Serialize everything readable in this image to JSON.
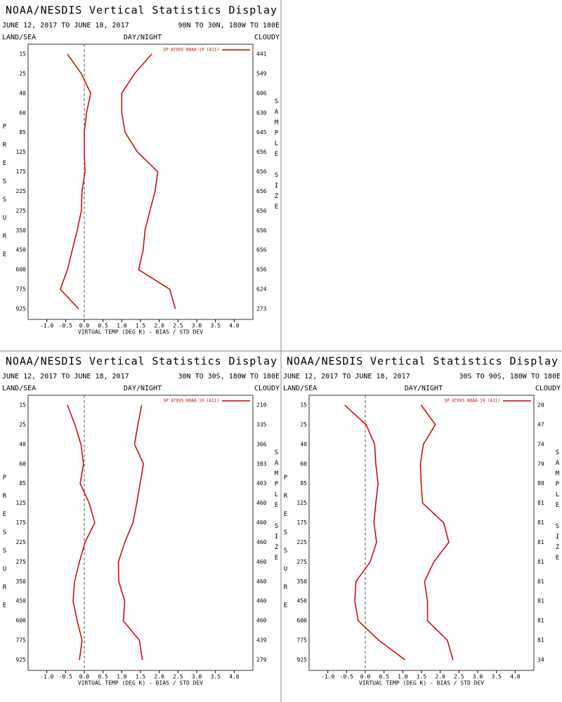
{
  "chart_data": [
    {
      "type": "line",
      "title": "NOAA/NESDIS Vertical Statistics Display",
      "date_range": "JUNE 12, 2017 TO JUNE 18, 2017",
      "region": "90N TO 30N, 180W TO 180E",
      "surface": "LAND/SEA",
      "time": "DAY/NIGHT",
      "sky": "CLOUDY",
      "xlabel": "VIRTUAL TEMP (DEG K) - BIAS / STD DEV",
      "ylabel": "PRESSURE",
      "y2label": "SAMPLE SIZE",
      "categories": [
        15,
        25,
        40,
        60,
        85,
        125,
        175,
        225,
        275,
        350,
        450,
        600,
        775,
        925
      ],
      "sample_size": [
        441,
        549,
        606,
        630,
        645,
        656,
        656,
        656,
        656,
        656,
        656,
        656,
        624,
        273
      ],
      "series": [
        {
          "name": "SP ATOVS NOAA-19 (A11)",
          "color": "#cc0000",
          "bias": [
            -0.45,
            -0.08,
            0.17,
            0.06,
            0.0,
            0.0,
            0.02,
            -0.06,
            -0.08,
            -0.19,
            -0.32,
            -0.45,
            -0.64,
            -0.15
          ],
          "std_dev": [
            1.8,
            1.34,
            1.0,
            1.0,
            1.09,
            1.42,
            1.96,
            1.89,
            1.75,
            1.62,
            1.57,
            1.45,
            2.28,
            2.43
          ]
        }
      ],
      "xlim": [
        -1.5,
        4.5
      ],
      "xticks": [
        {
          "value": -1,
          "label": "-1.0"
        },
        -0.5,
        {
          "value": 0,
          "label": "0.0"
        },
        0.5,
        {
          "value": 1,
          "label": "1.0"
        },
        1.5,
        {
          "value": 2,
          "label": "2.0"
        },
        2.5,
        {
          "value": 3,
          "label": "3.0"
        },
        3.5,
        {
          "value": 4,
          "label": "4.0"
        }
      ]
    },
    {
      "type": "line",
      "title": "NOAA/NESDIS Vertical Statistics Display",
      "date_range": "JUNE 12, 2017 TO JUNE 18, 2017",
      "region": "30N TO 30S, 180W TO 180E",
      "surface": "LAND/SEA",
      "time": "DAY/NIGHT",
      "sky": "CLOUDY",
      "xlabel": "VIRTUAL TEMP (DEG K) - BIAS / STD DEV",
      "ylabel": "PRESSURE",
      "y2label": "SAMPLE SIZE",
      "categories": [
        15,
        25,
        40,
        60,
        85,
        125,
        175,
        225,
        275,
        350,
        450,
        600,
        775,
        925
      ],
      "sample_size": [
        210,
        335,
        366,
        383,
        403,
        460,
        460,
        460,
        460,
        460,
        460,
        460,
        439,
        279
      ],
      "series": [
        {
          "name": "SP ATOVS NOAA-19 (A11)",
          "color": "#cc0000",
          "bias": [
            -0.45,
            -0.25,
            -0.09,
            -0.02,
            -0.11,
            0.13,
            0.28,
            0.02,
            -0.13,
            -0.26,
            -0.3,
            -0.19,
            -0.06,
            -0.13
          ],
          "std_dev": [
            1.53,
            1.43,
            1.34,
            1.58,
            1.49,
            1.4,
            1.3,
            1.08,
            0.91,
            0.92,
            1.08,
            1.04,
            1.47,
            1.55
          ]
        }
      ],
      "xlim": [
        -1.5,
        4.5
      ],
      "xticks": [
        {
          "value": -1,
          "label": "-1.0"
        },
        -0.5,
        {
          "value": 0,
          "label": "0.0"
        },
        0.5,
        {
          "value": 1,
          "label": "1.0"
        },
        1.5,
        {
          "value": 2,
          "label": "2.0"
        },
        2.5,
        {
          "value": 3,
          "label": "3.0"
        },
        3.5,
        {
          "value": 4,
          "label": "4.0"
        }
      ]
    },
    {
      "type": "line",
      "title": "NOAA/NESDIS Vertical Statistics Display",
      "date_range": "JUNE 12, 2017 TO JUNE 18, 2017",
      "region": "30S TO 90S, 180W TO 180E",
      "surface": "LAND/SEA",
      "time": "DAY/NIGHT",
      "sky": "CLOUDY",
      "xlabel": "VIRTUAL TEMP (DEG K) - BIAS / STD DEV",
      "ylabel": "PRESSURE",
      "y2label": "SAMPLE SIZE",
      "categories": [
        15,
        25,
        40,
        60,
        85,
        125,
        175,
        225,
        275,
        350,
        450,
        600,
        775,
        925
      ],
      "sample_size": [
        20,
        47,
        74,
        79,
        80,
        81,
        81,
        81,
        81,
        81,
        81,
        81,
        81,
        34
      ],
      "series": [
        {
          "name": "SP ATOVS NOAA-19 (A11)",
          "color": "#cc0000",
          "bias": [
            -0.55,
            0.02,
            0.25,
            0.28,
            0.34,
            0.28,
            0.23,
            0.3,
            0.13,
            -0.25,
            -0.28,
            -0.19,
            0.36,
            1.06
          ],
          "std_dev": [
            1.49,
            1.87,
            1.55,
            1.47,
            1.49,
            1.53,
            2.09,
            2.23,
            1.83,
            1.58,
            1.66,
            1.66,
            2.19,
            2.34
          ]
        }
      ],
      "xlim": [
        -1.5,
        4.5
      ],
      "xticks": [
        {
          "value": -1,
          "label": "-1.0"
        },
        -0.5,
        {
          "value": 0,
          "label": "0.0"
        },
        0.5,
        {
          "value": 1,
          "label": "1.0"
        },
        1.5,
        {
          "value": 2,
          "label": "2.0"
        },
        2.5,
        {
          "value": 3,
          "label": "3.0"
        },
        3.5,
        {
          "value": 4,
          "label": "4.0"
        }
      ]
    }
  ]
}
